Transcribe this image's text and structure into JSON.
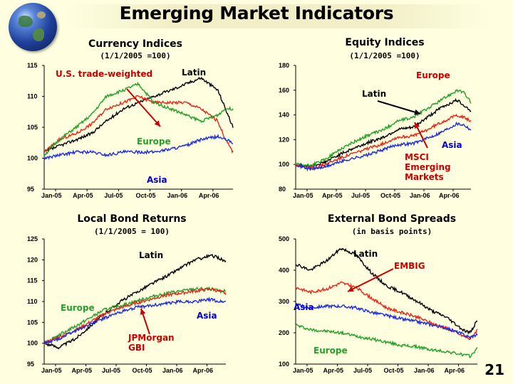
{
  "title": "Emerging Market Indicators",
  "page_number": "21",
  "colors": {
    "background": "#FFFFE0",
    "black": "#000000",
    "red": "#E8261A",
    "green": "#24A02A",
    "blue": "#1D2DE0",
    "annotation_red": "#CC0000",
    "annotation_blue": "#0000CC"
  },
  "icons": {
    "logo": "globe-icon"
  },
  "x_tick_labels": [
    "Jan-05",
    "Apr-05",
    "Jul-05",
    "Oct-05",
    "Jan-06",
    "Apr-06"
  ],
  "chart_data": [
    {
      "type": "line",
      "title": "Currency Indices",
      "subtitle": "(1/1/2005 =100)",
      "ylim": [
        95,
        115
      ],
      "yticks": [
        95,
        100,
        105,
        110,
        115
      ],
      "series": [
        {
          "name": "Latin",
          "color": "#000000",
          "points": [
            [
              0,
              101
            ],
            [
              0.08,
              102
            ],
            [
              0.17,
              103
            ],
            [
              0.25,
              104
            ],
            [
              0.33,
              106
            ],
            [
              0.42,
              108
            ],
            [
              0.5,
              109
            ],
            [
              0.58,
              110
            ],
            [
              0.67,
              111
            ],
            [
              0.75,
              112
            ],
            [
              0.83,
              113
            ],
            [
              0.92,
              111
            ],
            [
              0.96,
              108
            ],
            [
              1,
              105
            ]
          ]
        },
        {
          "name": "U.S. trade-weighted",
          "color": "#E8261A",
          "points": [
            [
              0,
              101
            ],
            [
              0.08,
              103
            ],
            [
              0.17,
              104
            ],
            [
              0.25,
              105.5
            ],
            [
              0.33,
              108
            ],
            [
              0.42,
              109
            ],
            [
              0.5,
              110
            ],
            [
              0.58,
              109
            ],
            [
              0.67,
              109
            ],
            [
              0.75,
              109
            ],
            [
              0.83,
              108
            ],
            [
              0.92,
              106
            ],
            [
              0.96,
              103
            ],
            [
              1,
              101
            ]
          ]
        },
        {
          "name": "Europe",
          "color": "#24A02A",
          "points": [
            [
              0,
              100.5
            ],
            [
              0.08,
              103
            ],
            [
              0.17,
              105
            ],
            [
              0.25,
              107
            ],
            [
              0.33,
              110
            ],
            [
              0.42,
              111
            ],
            [
              0.5,
              112
            ],
            [
              0.58,
              109
            ],
            [
              0.67,
              108
            ],
            [
              0.75,
              107
            ],
            [
              0.83,
              106
            ],
            [
              0.92,
              107
            ],
            [
              0.96,
              108
            ],
            [
              1,
              108
            ]
          ]
        },
        {
          "name": "Asia",
          "color": "#1D2DE0",
          "points": [
            [
              0,
              100
            ],
            [
              0.08,
              100.5
            ],
            [
              0.17,
              101
            ],
            [
              0.25,
              101
            ],
            [
              0.33,
              100.5
            ],
            [
              0.42,
              101
            ],
            [
              0.5,
              101
            ],
            [
              0.58,
              101
            ],
            [
              0.67,
              101.5
            ],
            [
              0.75,
              102
            ],
            [
              0.83,
              103
            ],
            [
              0.92,
              103.5
            ],
            [
              0.96,
              103
            ],
            [
              1,
              102.5
            ]
          ]
        }
      ],
      "annotations": [
        {
          "text": "U.S. trade-weighted",
          "color": "#CC0000"
        },
        {
          "text": "Latin",
          "color": "#000000"
        },
        {
          "text": "Europe",
          "color": "#24A02A"
        },
        {
          "text": "Asia",
          "color": "#0000CC"
        }
      ]
    },
    {
      "type": "line",
      "title": "Equity Indices",
      "subtitle": "(1/1/2005 =100)",
      "ylim": [
        80,
        180
      ],
      "yticks": [
        80,
        100,
        120,
        140,
        160,
        180
      ],
      "series": [
        {
          "name": "Latin",
          "color": "#000000",
          "points": [
            [
              0,
              100
            ],
            [
              0.08,
              98
            ],
            [
              0.17,
              102
            ],
            [
              0.25,
              108
            ],
            [
              0.33,
              113
            ],
            [
              0.42,
              118
            ],
            [
              0.5,
              122
            ],
            [
              0.58,
              128
            ],
            [
              0.67,
              130
            ],
            [
              0.75,
              138
            ],
            [
              0.83,
              146
            ],
            [
              0.92,
              152
            ],
            [
              0.96,
              148
            ],
            [
              1,
              143
            ]
          ]
        },
        {
          "name": "Europe",
          "color": "#24A02A",
          "points": [
            [
              0,
              100
            ],
            [
              0.08,
              99
            ],
            [
              0.17,
              104
            ],
            [
              0.25,
              112
            ],
            [
              0.33,
              118
            ],
            [
              0.42,
              124
            ],
            [
              0.5,
              128
            ],
            [
              0.58,
              135
            ],
            [
              0.67,
              138
            ],
            [
              0.75,
              145
            ],
            [
              0.83,
              152
            ],
            [
              0.92,
              160
            ],
            [
              0.96,
              158
            ],
            [
              1,
              150
            ]
          ]
        },
        {
          "name": "MSCI Emerging Markets",
          "color": "#E8261A",
          "points": [
            [
              0,
              100
            ],
            [
              0.08,
              97
            ],
            [
              0.17,
              100
            ],
            [
              0.25,
              105
            ],
            [
              0.33,
              109
            ],
            [
              0.42,
              113
            ],
            [
              0.5,
              117
            ],
            [
              0.58,
              122
            ],
            [
              0.67,
              123
            ],
            [
              0.75,
              128
            ],
            [
              0.83,
              134
            ],
            [
              0.92,
              140
            ],
            [
              0.96,
              138
            ],
            [
              1,
              135
            ]
          ]
        },
        {
          "name": "Asia",
          "color": "#1D2DE0",
          "points": [
            [
              0,
              100
            ],
            [
              0.08,
              96
            ],
            [
              0.17,
              98
            ],
            [
              0.25,
              102
            ],
            [
              0.33,
              105
            ],
            [
              0.42,
              108
            ],
            [
              0.5,
              112
            ],
            [
              0.58,
              116
            ],
            [
              0.67,
              117
            ],
            [
              0.75,
              121
            ],
            [
              0.83,
              126
            ],
            [
              0.92,
              133
            ],
            [
              0.96,
              132
            ],
            [
              1,
              128
            ]
          ]
        }
      ],
      "annotations": [
        {
          "text": "Europe",
          "color": "#CC0000"
        },
        {
          "text": "Latin",
          "color": "#000000"
        },
        {
          "text": "Asia",
          "color": "#0000CC"
        },
        {
          "text": "MSCI Emerging Markets",
          "color": "#CC0000"
        }
      ]
    },
    {
      "type": "line",
      "title": "Local Bond Returns",
      "subtitle": "(1/1/2005 = 100)",
      "ylim": [
        95,
        125
      ],
      "yticks": [
        95,
        100,
        105,
        110,
        115,
        120,
        125
      ],
      "series": [
        {
          "name": "Latin",
          "color": "#000000",
          "points": [
            [
              0,
              100
            ],
            [
              0.08,
              99
            ],
            [
              0.17,
              101
            ],
            [
              0.25,
              104
            ],
            [
              0.33,
              107
            ],
            [
              0.42,
              110
            ],
            [
              0.5,
              112
            ],
            [
              0.58,
              114
            ],
            [
              0.67,
              116
            ],
            [
              0.75,
              118
            ],
            [
              0.83,
              120
            ],
            [
              0.92,
              121
            ],
            [
              0.96,
              120.5
            ],
            [
              1,
              119.5
            ]
          ]
        },
        {
          "name": "Europe",
          "color": "#24A02A",
          "points": [
            [
              0,
              100
            ],
            [
              0.08,
              102
            ],
            [
              0.17,
              104
            ],
            [
              0.25,
              106
            ],
            [
              0.33,
              108
            ],
            [
              0.42,
              109
            ],
            [
              0.5,
              110
            ],
            [
              0.58,
              111
            ],
            [
              0.67,
              112
            ],
            [
              0.75,
              112.5
            ],
            [
              0.83,
              113
            ],
            [
              0.92,
              113
            ],
            [
              0.96,
              112.5
            ],
            [
              1,
              112.5
            ]
          ]
        },
        {
          "name": "JPMorgan GBI",
          "color": "#E8261A",
          "points": [
            [
              0,
              100
            ],
            [
              0.08,
              101.5
            ],
            [
              0.17,
              103
            ],
            [
              0.25,
              105
            ],
            [
              0.33,
              107
            ],
            [
              0.42,
              108.5
            ],
            [
              0.5,
              109.5
            ],
            [
              0.58,
              110.5
            ],
            [
              0.67,
              111.5
            ],
            [
              0.75,
              112
            ],
            [
              0.83,
              112.5
            ],
            [
              0.92,
              113
            ],
            [
              0.96,
              112.5
            ],
            [
              1,
              112
            ]
          ]
        },
        {
          "name": "Asia",
          "color": "#1D2DE0",
          "points": [
            [
              0,
              100
            ],
            [
              0.08,
              101
            ],
            [
              0.17,
              103
            ],
            [
              0.25,
              104.5
            ],
            [
              0.33,
              106
            ],
            [
              0.42,
              107.5
            ],
            [
              0.5,
              108.5
            ],
            [
              0.58,
              109
            ],
            [
              0.67,
              109.5
            ],
            [
              0.75,
              110
            ],
            [
              0.83,
              110
            ],
            [
              0.92,
              110.5
            ],
            [
              0.96,
              110
            ],
            [
              1,
              110
            ]
          ]
        }
      ],
      "annotations": [
        {
          "text": "Latin",
          "color": "#000000"
        },
        {
          "text": "Europe",
          "color": "#24A02A"
        },
        {
          "text": "Asia",
          "color": "#0000CC"
        },
        {
          "text": "JPMorgan GBI",
          "color": "#CC0000"
        }
      ]
    },
    {
      "type": "line",
      "title": "External Bond Spreads",
      "subtitle": "(in basis points)",
      "ylim": [
        100,
        500
      ],
      "yticks": [
        100,
        200,
        300,
        400,
        500
      ],
      "series": [
        {
          "name": "Latin",
          "color": "#000000",
          "points": [
            [
              0,
              420
            ],
            [
              0.08,
              400
            ],
            [
              0.17,
              430
            ],
            [
              0.25,
              470
            ],
            [
              0.33,
              450
            ],
            [
              0.42,
              390
            ],
            [
              0.5,
              350
            ],
            [
              0.58,
              330
            ],
            [
              0.67,
              300
            ],
            [
              0.75,
              270
            ],
            [
              0.83,
              250
            ],
            [
              0.92,
              210
            ],
            [
              0.96,
              200
            ],
            [
              1,
              240
            ]
          ]
        },
        {
          "name": "EMBIG",
          "color": "#E8261A",
          "points": [
            [
              0,
              345
            ],
            [
              0.08,
              330
            ],
            [
              0.17,
              340
            ],
            [
              0.25,
              360
            ],
            [
              0.33,
              345
            ],
            [
              0.42,
              310
            ],
            [
              0.5,
              280
            ],
            [
              0.58,
              265
            ],
            [
              0.67,
              250
            ],
            [
              0.75,
              230
            ],
            [
              0.83,
              215
            ],
            [
              0.92,
              190
            ],
            [
              0.96,
              180
            ],
            [
              1,
              210
            ]
          ]
        },
        {
          "name": "Asia",
          "color": "#1D2DE0",
          "points": [
            [
              0,
              290
            ],
            [
              0.08,
              280
            ],
            [
              0.17,
              285
            ],
            [
              0.25,
              285
            ],
            [
              0.33,
              280
            ],
            [
              0.42,
              265
            ],
            [
              0.5,
              255
            ],
            [
              0.58,
              245
            ],
            [
              0.67,
              235
            ],
            [
              0.75,
              225
            ],
            [
              0.83,
              215
            ],
            [
              0.92,
              195
            ],
            [
              0.96,
              185
            ],
            [
              1,
              195
            ]
          ]
        },
        {
          "name": "Europe",
          "color": "#24A02A",
          "points": [
            [
              0,
              225
            ],
            [
              0.08,
              210
            ],
            [
              0.17,
              205
            ],
            [
              0.25,
              200
            ],
            [
              0.33,
              190
            ],
            [
              0.42,
              180
            ],
            [
              0.5,
              170
            ],
            [
              0.58,
              160
            ],
            [
              0.67,
              155
            ],
            [
              0.75,
              145
            ],
            [
              0.83,
              140
            ],
            [
              0.92,
              130
            ],
            [
              0.96,
              125
            ],
            [
              1,
              150
            ]
          ]
        }
      ],
      "annotations": [
        {
          "text": "Latin",
          "color": "#000000"
        },
        {
          "text": "EMBIG",
          "color": "#CC0000"
        },
        {
          "text": "Asia",
          "color": "#0000CC"
        },
        {
          "text": "Europe",
          "color": "#24A02A"
        }
      ]
    }
  ]
}
